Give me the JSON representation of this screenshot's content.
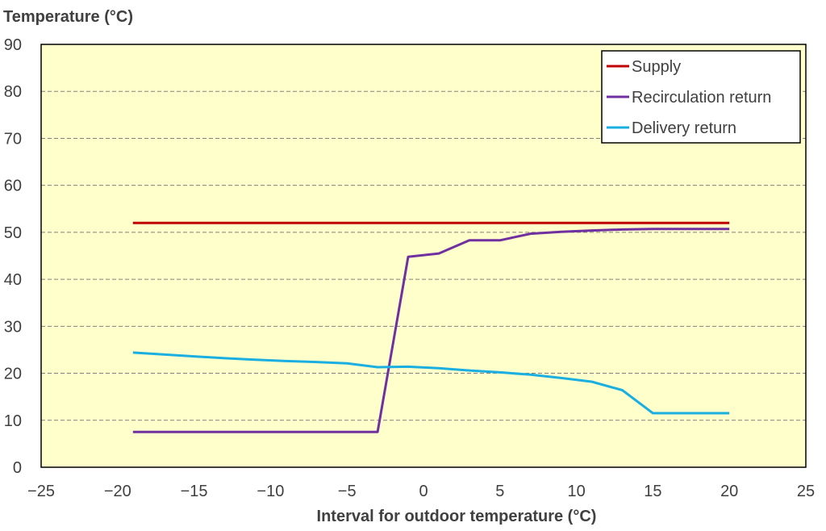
{
  "chart_data": {
    "type": "line",
    "ylabel": "Temperature (°C)",
    "xlabel": "Interval for outdoor temperature (°C)",
    "xlim": [
      -25,
      25
    ],
    "ylim": [
      0,
      90
    ],
    "xticks": [
      -25,
      -20,
      -15,
      -10,
      -5,
      0,
      5,
      10,
      15,
      20,
      25
    ],
    "yticks": [
      0,
      10,
      20,
      30,
      40,
      50,
      60,
      70,
      80,
      90
    ],
    "grid": "horizontal dashed",
    "legend_position": "top-right",
    "plot_background": "#FFFFCC",
    "series": [
      {
        "name": "Supply",
        "color": "#C00000",
        "x": [
          -19,
          20
        ],
        "y": [
          52,
          52
        ]
      },
      {
        "name": "Recirculation return",
        "color": "#7030A0",
        "x": [
          -19,
          -17,
          -15,
          -13,
          -11,
          -9,
          -7,
          -5,
          -3,
          -1,
          1,
          3,
          5,
          7,
          9,
          11,
          13,
          15,
          17,
          19,
          20
        ],
        "y": [
          7.5,
          7.5,
          7.5,
          7.5,
          7.5,
          7.5,
          7.5,
          7.5,
          7.5,
          44.8,
          45.5,
          48.3,
          48.3,
          49.7,
          50.1,
          50.4,
          50.6,
          50.7,
          50.7,
          50.7,
          50.7
        ]
      },
      {
        "name": "Delivery return",
        "color": "#1AAFE0",
        "x": [
          -19,
          -17,
          -15,
          -13,
          -11,
          -9,
          -7,
          -5,
          -3,
          -1,
          1,
          3,
          5,
          7,
          9,
          11,
          13,
          15,
          17,
          19,
          20
        ],
        "y": [
          24.4,
          24.0,
          23.6,
          23.2,
          22.9,
          22.6,
          22.4,
          22.1,
          21.3,
          21.4,
          21.1,
          20.6,
          20.2,
          19.7,
          19.0,
          18.2,
          16.4,
          11.5,
          11.5,
          11.5,
          11.5
        ]
      }
    ]
  }
}
